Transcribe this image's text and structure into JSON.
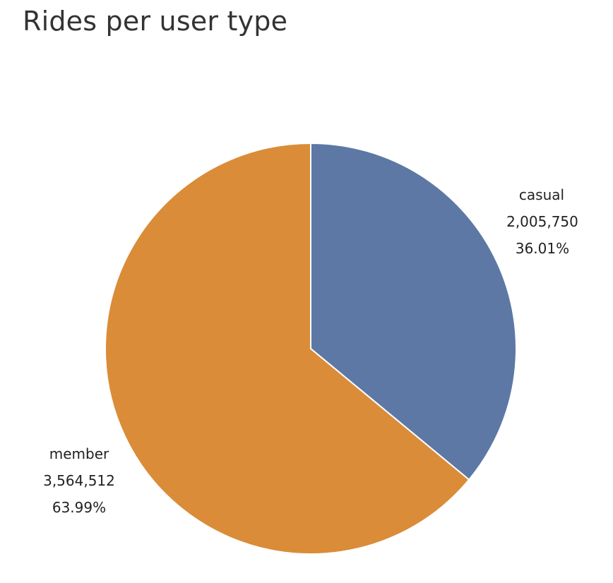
{
  "chart_data": {
    "type": "pie",
    "title": "Rides per user type",
    "start_angle_deg": 0,
    "direction": "clockwise",
    "slices": [
      {
        "label": "casual",
        "value_text": "2,005,750",
        "percent_text": "36.01%",
        "value": 2005750,
        "color": "#5d78a5"
      },
      {
        "label": "member",
        "value_text": "3,564,512",
        "percent_text": "63.99%",
        "value": 3564512,
        "color": "#da8c38"
      }
    ],
    "slice_border_color": "#ffffff"
  }
}
